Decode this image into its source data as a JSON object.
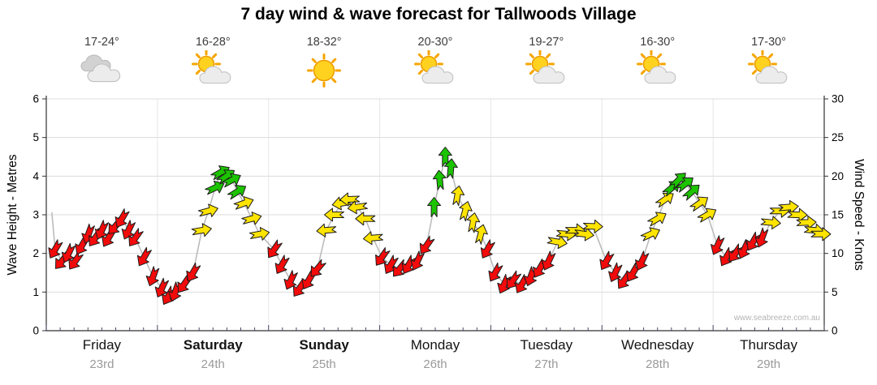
{
  "title": "7 day wind & wave forecast for Tallwoods Village",
  "watermark": "www.seabreeze.com.au",
  "days": [
    {
      "name": "Friday",
      "date": "23rd",
      "temp": "17-24°",
      "icon": "cloudy",
      "weekend": false
    },
    {
      "name": "Saturday",
      "date": "24th",
      "temp": "16-28°",
      "icon": "partly-sunny",
      "weekend": true
    },
    {
      "name": "Sunday",
      "date": "25th",
      "temp": "18-32°",
      "icon": "sunny",
      "weekend": true
    },
    {
      "name": "Monday",
      "date": "26th",
      "temp": "20-30°",
      "icon": "partly-sunny",
      "weekend": false
    },
    {
      "name": "Tuesday",
      "date": "27th",
      "temp": "19-27°",
      "icon": "partly-sunny",
      "weekend": false
    },
    {
      "name": "Wednesday",
      "date": "28th",
      "temp": "16-30°",
      "icon": "partly-sunny",
      "weekend": false
    },
    {
      "name": "Thursday",
      "date": "29th",
      "temp": "17-30°",
      "icon": "partly-sunny",
      "weekend": false
    }
  ],
  "chart_data": {
    "type": "wind-arrow-time-series",
    "title": "7 day wind & wave forecast for Tallwoods Village",
    "categories": [
      "Friday 23rd",
      "Saturday 24th",
      "Sunday 25th",
      "Monday 26th",
      "Tuesday 27th",
      "Wednesday 28th",
      "Thursday 29th"
    ],
    "y_left": {
      "label": "Wave Height - Metres",
      "range": [
        0,
        6
      ],
      "ticks": [
        0,
        1,
        2,
        3,
        4,
        5,
        6
      ]
    },
    "y_right": {
      "label": "Wind Speed - Knots",
      "range": [
        0,
        30
      ],
      "ticks": [
        0,
        5,
        10,
        15,
        20,
        25,
        30
      ]
    },
    "grid": true,
    "arrow_colors": {
      "red": "#f20b0b",
      "yellow": "#ffe400",
      "green": "#1cc400",
      "line": "#b8b8b8"
    },
    "point_format": [
      "time_in_days",
      "wind_speed_knots",
      "arrow_color",
      "arrow_direction_deg"
    ],
    "points": [
      [
        0.05,
        15.3,
        "none",
        0
      ],
      [
        0.08,
        10.5,
        "red",
        210
      ],
      [
        0.14,
        9.0,
        "red",
        220
      ],
      [
        0.2,
        10.0,
        "red",
        205
      ],
      [
        0.26,
        9.0,
        "red",
        215
      ],
      [
        0.32,
        11.0,
        "red",
        210
      ],
      [
        0.38,
        12.5,
        "red",
        200
      ],
      [
        0.44,
        12.0,
        "red",
        215
      ],
      [
        0.5,
        13.0,
        "red",
        205
      ],
      [
        0.56,
        12.0,
        "red",
        210
      ],
      [
        0.62,
        13.5,
        "red",
        220
      ],
      [
        0.68,
        14.5,
        "red",
        210
      ],
      [
        0.74,
        13.0,
        "red",
        205
      ],
      [
        0.8,
        12.0,
        "red",
        215
      ],
      [
        0.88,
        9.5,
        "red",
        210
      ],
      [
        0.96,
        7.0,
        "red",
        200
      ],
      [
        1.04,
        5.5,
        "red",
        205
      ],
      [
        1.1,
        4.5,
        "red",
        210
      ],
      [
        1.16,
        5.0,
        "red",
        200
      ],
      [
        1.24,
        6.0,
        "red",
        215
      ],
      [
        1.32,
        7.5,
        "red",
        210
      ],
      [
        1.4,
        13.0,
        "yellow",
        80
      ],
      [
        1.46,
        15.5,
        "yellow",
        75
      ],
      [
        1.52,
        18.5,
        "green",
        65
      ],
      [
        1.57,
        20.5,
        "green",
        60
      ],
      [
        1.62,
        20.0,
        "green",
        55
      ],
      [
        1.67,
        19.5,
        "green",
        62
      ],
      [
        1.72,
        18.0,
        "green",
        58
      ],
      [
        1.78,
        16.5,
        "yellow",
        70
      ],
      [
        1.85,
        14.5,
        "yellow",
        75
      ],
      [
        1.92,
        12.5,
        "yellow",
        80
      ],
      [
        2.05,
        10.5,
        "red",
        215
      ],
      [
        2.12,
        8.5,
        "red",
        210
      ],
      [
        2.2,
        6.5,
        "red",
        205
      ],
      [
        2.28,
        5.5,
        "red",
        215
      ],
      [
        2.36,
        6.5,
        "red",
        210
      ],
      [
        2.44,
        8.0,
        "red",
        220
      ],
      [
        2.52,
        13.0,
        "yellow",
        265
      ],
      [
        2.59,
        15.0,
        "yellow",
        270
      ],
      [
        2.66,
        16.5,
        "yellow",
        260
      ],
      [
        2.73,
        17.0,
        "yellow",
        268
      ],
      [
        2.8,
        16.0,
        "yellow",
        262
      ],
      [
        2.87,
        14.5,
        "yellow",
        270
      ],
      [
        2.94,
        12.0,
        "yellow",
        265
      ],
      [
        3.02,
        9.5,
        "red",
        215
      ],
      [
        3.1,
        8.5,
        "red",
        210
      ],
      [
        3.18,
        8.0,
        "red",
        220
      ],
      [
        3.26,
        8.5,
        "red",
        210
      ],
      [
        3.34,
        9.0,
        "red",
        205
      ],
      [
        3.42,
        11.0,
        "red",
        215
      ],
      [
        3.49,
        16.0,
        "green",
        0
      ],
      [
        3.54,
        19.5,
        "green",
        355
      ],
      [
        3.59,
        22.5,
        "green",
        0
      ],
      [
        3.64,
        21.0,
        "green",
        5
      ],
      [
        3.7,
        17.5,
        "yellow",
        10
      ],
      [
        3.77,
        15.5,
        "yellow",
        15
      ],
      [
        3.84,
        14.0,
        "yellow",
        10
      ],
      [
        3.91,
        12.5,
        "yellow",
        15
      ],
      [
        3.97,
        10.5,
        "red",
        210
      ],
      [
        4.04,
        7.5,
        "red",
        210
      ],
      [
        4.12,
        6.0,
        "red",
        205
      ],
      [
        4.2,
        6.5,
        "red",
        215
      ],
      [
        4.28,
        6.0,
        "red",
        210
      ],
      [
        4.36,
        7.0,
        "red",
        200
      ],
      [
        4.44,
        8.0,
        "red",
        210
      ],
      [
        4.52,
        9.0,
        "red",
        205
      ],
      [
        4.6,
        11.5,
        "yellow",
        100
      ],
      [
        4.68,
        12.5,
        "yellow",
        95
      ],
      [
        4.76,
        13.0,
        "yellow",
        90
      ],
      [
        4.84,
        12.5,
        "yellow",
        98
      ],
      [
        4.92,
        13.5,
        "yellow",
        92
      ],
      [
        5.04,
        9.0,
        "red",
        210
      ],
      [
        5.12,
        7.5,
        "red",
        205
      ],
      [
        5.2,
        6.5,
        "red",
        215
      ],
      [
        5.28,
        7.5,
        "red",
        210
      ],
      [
        5.36,
        9.0,
        "red",
        205
      ],
      [
        5.44,
        12.5,
        "yellow",
        65
      ],
      [
        5.5,
        14.5,
        "yellow",
        60
      ],
      [
        5.57,
        17.0,
        "yellow",
        55
      ],
      [
        5.63,
        18.5,
        "green",
        50
      ],
      [
        5.69,
        19.5,
        "green",
        45
      ],
      [
        5.75,
        19.0,
        "green",
        52
      ],
      [
        5.81,
        18.0,
        "green",
        48
      ],
      [
        5.88,
        16.5,
        "yellow",
        55
      ],
      [
        5.95,
        15.0,
        "yellow",
        60
      ],
      [
        6.04,
        11.0,
        "red",
        205
      ],
      [
        6.12,
        9.5,
        "red",
        210
      ],
      [
        6.2,
        10.0,
        "red",
        215
      ],
      [
        6.28,
        10.5,
        "red",
        205
      ],
      [
        6.36,
        11.5,
        "red",
        210
      ],
      [
        6.44,
        12.0,
        "red",
        200
      ],
      [
        6.52,
        14.0,
        "yellow",
        95
      ],
      [
        6.6,
        15.5,
        "yellow",
        90
      ],
      [
        6.68,
        16.0,
        "yellow",
        85
      ],
      [
        6.76,
        15.0,
        "yellow",
        92
      ],
      [
        6.84,
        14.0,
        "yellow",
        88
      ],
      [
        6.91,
        13.0,
        "yellow",
        95
      ],
      [
        6.97,
        12.5,
        "yellow",
        90
      ]
    ]
  }
}
